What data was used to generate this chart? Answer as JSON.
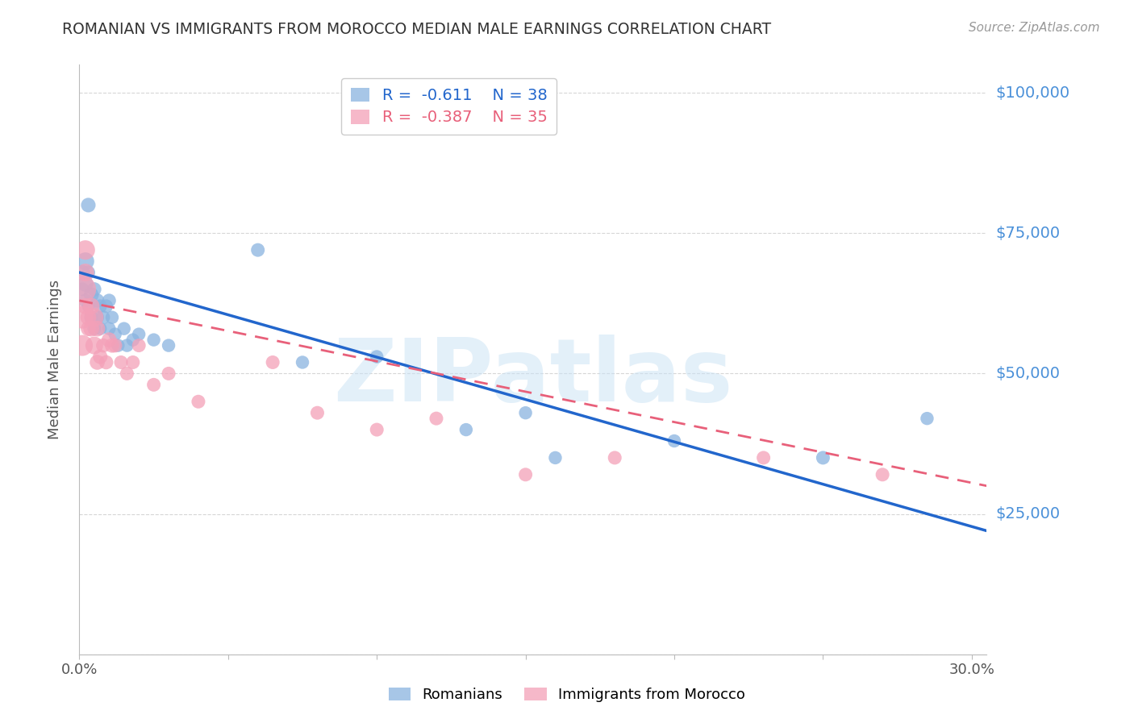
{
  "title": "ROMANIAN VS IMMIGRANTS FROM MOROCCO MEDIAN MALE EARNINGS CORRELATION CHART",
  "source": "Source: ZipAtlas.com",
  "ylabel": "Median Male Earnings",
  "yticks": [
    0,
    25000,
    50000,
    75000,
    100000
  ],
  "ytick_labels": [
    "",
    "$25,000",
    "$50,000",
    "$75,000",
    "$100,000"
  ],
  "background_color": "#ffffff",
  "blue_color": "#8ab4e0",
  "pink_color": "#f4a0b8",
  "blue_line_color": "#2266cc",
  "pink_line_color": "#e8607a",
  "axis_color": "#bbbbbb",
  "grid_color": "#cccccc",
  "title_color": "#333333",
  "right_label_color": "#4a90d9",
  "legend_blue_label": "Romanians",
  "legend_pink_label": "Immigrants from Morocco",
  "R_blue": -0.611,
  "N_blue": 38,
  "R_pink": -0.387,
  "N_pink": 35,
  "blue_x": [
    0.001,
    0.001,
    0.002,
    0.002,
    0.002,
    0.003,
    0.003,
    0.003,
    0.004,
    0.004,
    0.005,
    0.005,
    0.006,
    0.006,
    0.007,
    0.007,
    0.008,
    0.009,
    0.01,
    0.01,
    0.011,
    0.012,
    0.013,
    0.015,
    0.016,
    0.018,
    0.02,
    0.025,
    0.03,
    0.06,
    0.075,
    0.1,
    0.13,
    0.15,
    0.16,
    0.2,
    0.25,
    0.285
  ],
  "blue_y": [
    68000,
    65000,
    70000,
    66000,
    63000,
    80000,
    68000,
    62000,
    64000,
    60000,
    65000,
    58000,
    63000,
    60000,
    62000,
    58000,
    60000,
    62000,
    63000,
    58000,
    60000,
    57000,
    55000,
    58000,
    55000,
    56000,
    57000,
    56000,
    55000,
    72000,
    52000,
    53000,
    40000,
    43000,
    35000,
    38000,
    35000,
    42000
  ],
  "blue_sizes": [
    180,
    150,
    250,
    200,
    150,
    170,
    150,
    130,
    180,
    160,
    160,
    150,
    160,
    150,
    150,
    140,
    150,
    150,
    150,
    140,
    140,
    140,
    140,
    140,
    140,
    140,
    140,
    140,
    140,
    150,
    140,
    140,
    140,
    140,
    140,
    140,
    150,
    140
  ],
  "pink_x": [
    0.001,
    0.001,
    0.001,
    0.002,
    0.002,
    0.002,
    0.003,
    0.003,
    0.004,
    0.004,
    0.005,
    0.005,
    0.006,
    0.006,
    0.007,
    0.008,
    0.009,
    0.01,
    0.011,
    0.012,
    0.014,
    0.016,
    0.018,
    0.02,
    0.025,
    0.03,
    0.04,
    0.065,
    0.08,
    0.1,
    0.12,
    0.15,
    0.18,
    0.23,
    0.27
  ],
  "pink_y": [
    65000,
    60000,
    55000,
    72000,
    68000,
    62000,
    60000,
    58000,
    62000,
    58000,
    60000,
    55000,
    58000,
    52000,
    53000,
    55000,
    52000,
    56000,
    55000,
    55000,
    52000,
    50000,
    52000,
    55000,
    48000,
    50000,
    45000,
    52000,
    43000,
    40000,
    42000,
    32000,
    35000,
    35000,
    32000
  ],
  "pink_sizes": [
    600,
    400,
    350,
    300,
    250,
    200,
    200,
    180,
    220,
    200,
    280,
    250,
    200,
    180,
    170,
    160,
    160,
    180,
    170,
    160,
    150,
    150,
    150,
    150,
    150,
    150,
    150,
    150,
    150,
    150,
    150,
    150,
    150,
    150,
    150
  ],
  "xmin": 0.0,
  "xmax": 0.305,
  "ymin": 0,
  "ymax": 105000,
  "watermark": "ZIPatlas",
  "blue_line_x": [
    0.0,
    0.305
  ],
  "blue_line_y": [
    68000,
    22000
  ],
  "pink_line_x": [
    0.0,
    0.305
  ],
  "pink_line_y": [
    63000,
    30000
  ]
}
